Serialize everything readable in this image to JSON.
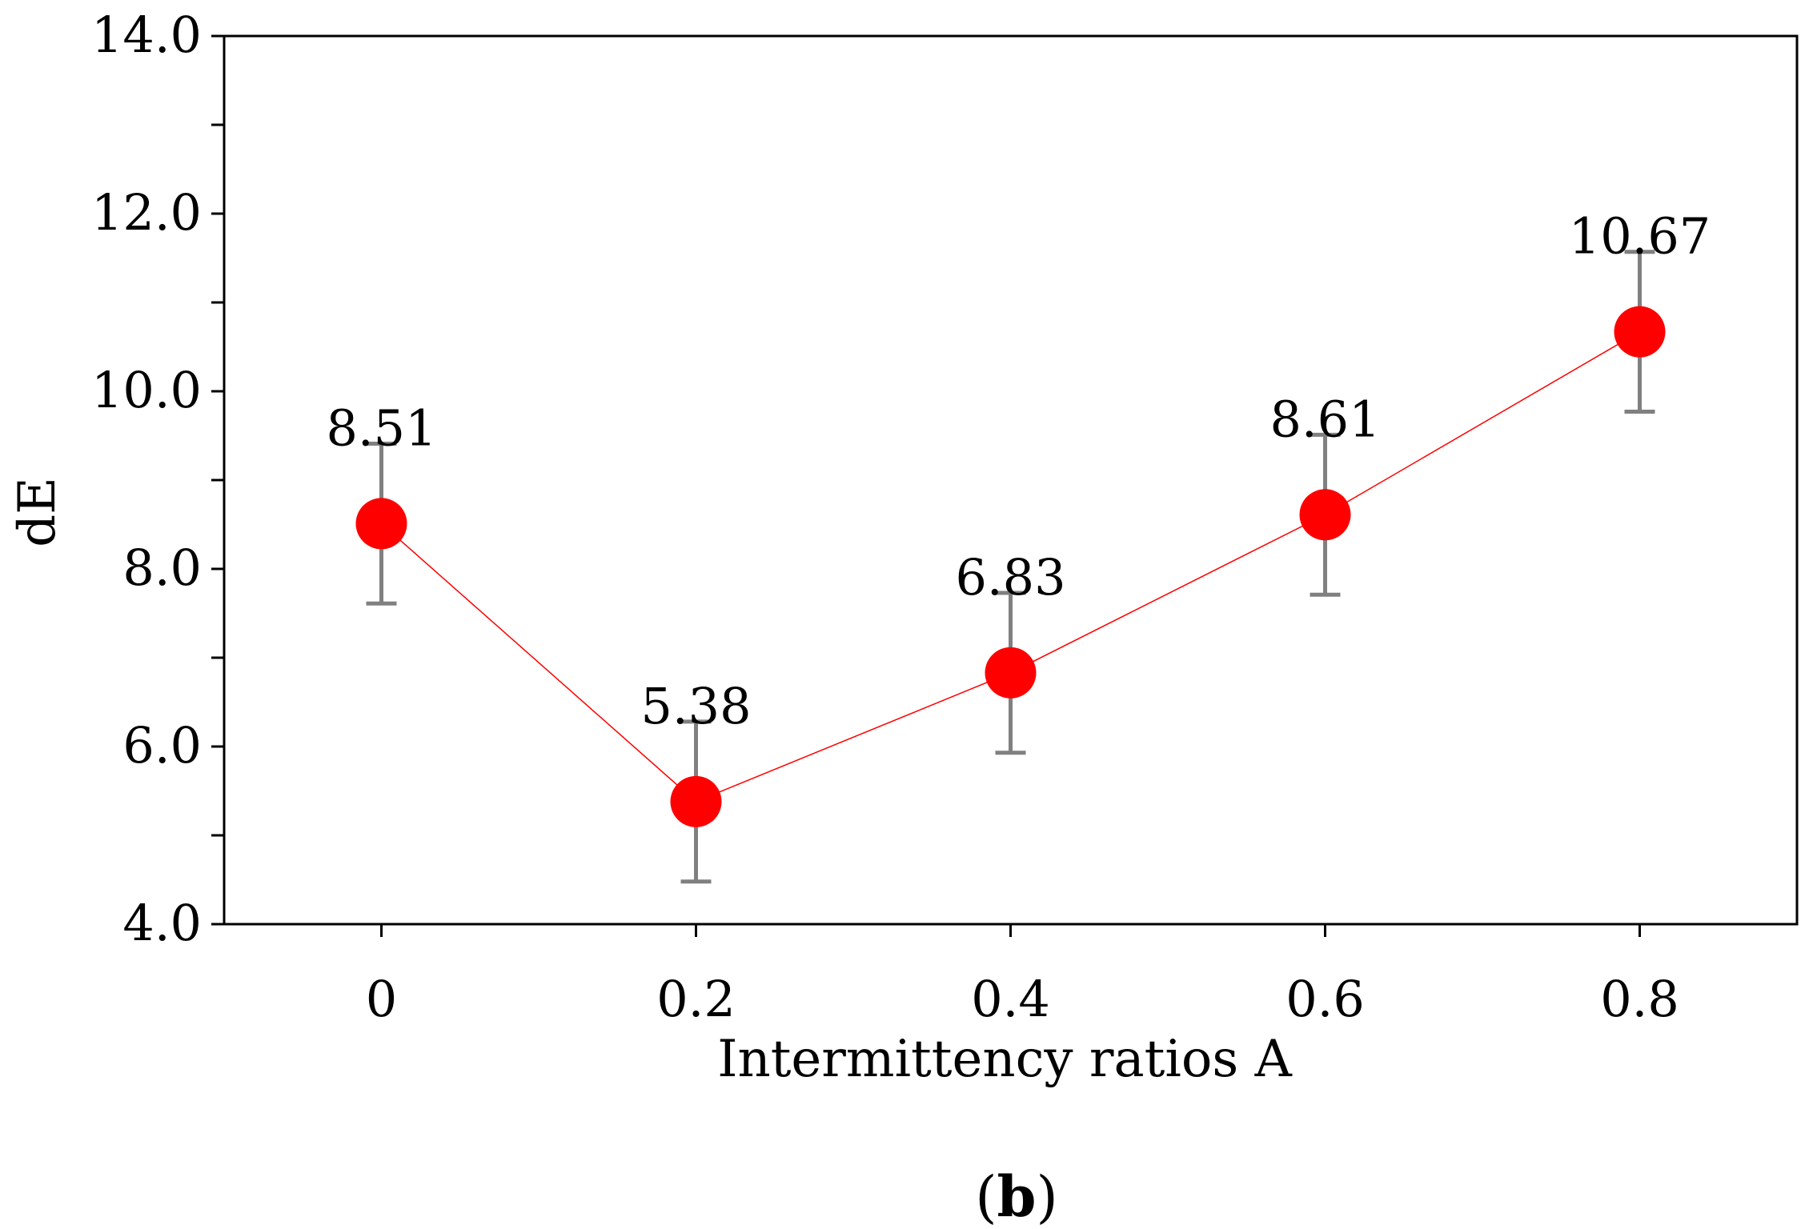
{
  "chart_data": {
    "type": "scatter",
    "title": "",
    "xlabel": "Intermittency ratios A",
    "ylabel": "dE",
    "x": [
      0,
      0.2,
      0.4,
      0.6,
      0.8
    ],
    "x_tick_labels": [
      "0",
      "0.2",
      "0.4",
      "0.6",
      "0.8"
    ],
    "xlim": [
      -0.1,
      0.9
    ],
    "ylim": [
      4.0,
      14.0
    ],
    "y_ticks": [
      4.0,
      6.0,
      8.0,
      10.0,
      12.0,
      14.0
    ],
    "y_tick_labels": [
      "4.0",
      "6.0",
      "8.0",
      "10.0",
      "12.0",
      "14.0"
    ],
    "y_minor_step": 1.0,
    "grid": false,
    "series": [
      {
        "name": "dE",
        "values": [
          8.51,
          5.38,
          6.83,
          8.61,
          10.67
        ],
        "value_labels": [
          "8.51",
          "5.38",
          "6.83",
          "8.61",
          "10.67"
        ],
        "error": [
          0.9,
          0.9,
          0.9,
          0.9,
          0.9
        ],
        "marker_color": "#ff0000",
        "line_color": "#ff0000",
        "error_bar_color": "#808080"
      }
    ],
    "panel_label": {
      "open": "(",
      "letter": "b",
      "close": ")"
    }
  }
}
